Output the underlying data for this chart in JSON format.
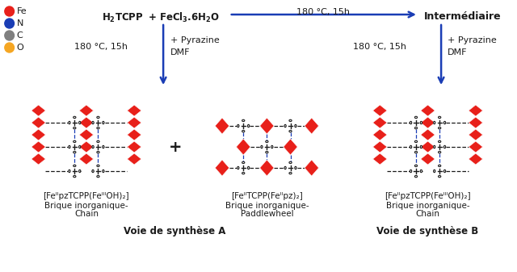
{
  "background_color": "#ffffff",
  "legend_items": [
    {
      "label": "Fe",
      "color": "#e8201a"
    },
    {
      "label": "N",
      "color": "#1a3db5"
    },
    {
      "label": "C",
      "color": "#808080"
    },
    {
      "label": "O",
      "color": "#f5a623"
    }
  ],
  "blue_color": "#1a3db5",
  "red_color": "#e8201a",
  "dark_color": "#1a1a1a",
  "top_reactant": "H₂TCPP  +  FeCl₃.6H₂O",
  "top_arrow_label": "180 °C, 15h",
  "top_right_label": "Intermédiaire",
  "left_cond1": "180 °C, 15h",
  "left_cond2": "+ Pyrazine",
  "left_cond3": "DMF",
  "right_cond1": "180 °C, 15h",
  "right_cond2": "+ Pyrazine",
  "right_cond3": "DMF",
  "lbl_A1_1": "[FeᴵᴵpzTCPP(FeᴵᴵᴵOH)₂]",
  "lbl_A1_2": "Brique inorganique-",
  "lbl_A1_3": "Chain",
  "lbl_A2_1": "[FeᴵᴵTCPP(Feᴵᴵpz)₂]",
  "lbl_A2_2": "Brique inorganique-",
  "lbl_A2_3": "Paddlewheel",
  "lbl_B_1": "[FeᴵᴵpzTCPP(FeᴵᴵᴵOH)₂]",
  "lbl_B_2": "Brique inorganique-",
  "lbl_B_3": "Chain",
  "voie_A": "Voie de synthèse A",
  "voie_B": "Voie de synthèse B"
}
